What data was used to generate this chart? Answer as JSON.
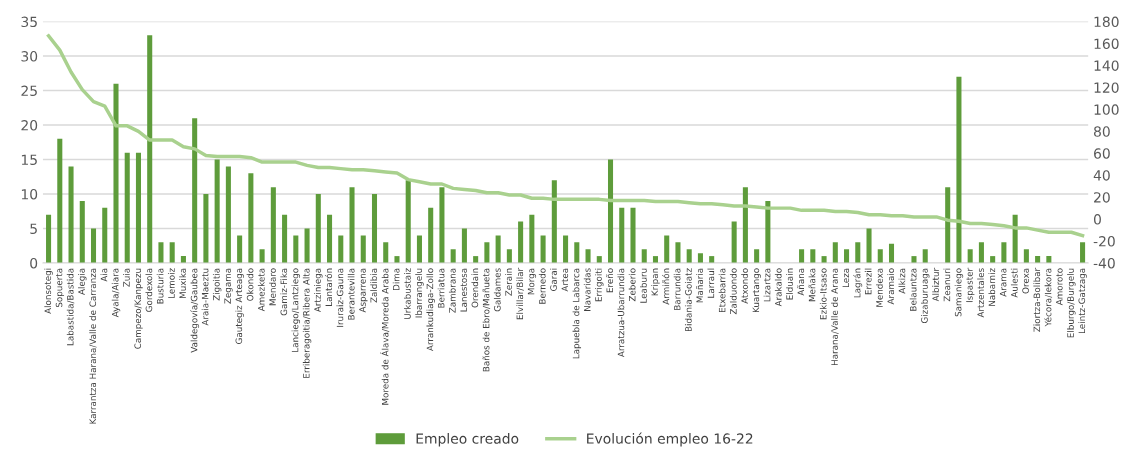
{
  "chart_data": {
    "type": "bar",
    "categories": [
      "Alonsotegi",
      "Sopuerta",
      "Labastida/Bastida",
      "Alegia",
      "Karrantza Harana/Valle de Carranza",
      "Aia",
      "Ayala/Aiara",
      "Zuia",
      "Campezo/Kanpezu",
      "Gordexola",
      "Busturia",
      "Lemoiz",
      "Muxika",
      "Valdegovía/Gaubea",
      "Araia-Maeztu",
      "Zigoitia",
      "Zegama",
      "Gautegiz Arteaga",
      "Okondo",
      "Amezketa",
      "Mendaro",
      "Gamiz-Fika",
      "Lanciego/Lantziego",
      "Erriberagoitia/Ribera Alta",
      "Artziniega",
      "Lantarón",
      "Iruraiz-Gauna",
      "Berantevilla",
      "Asparrena",
      "Zaldibia",
      "Moreda de Álava/Moreda Araba",
      "Dima",
      "Urkabustaiz",
      "Ibarrangelu",
      "Arrankudiaga-Zollo",
      "Berriatua",
      "Zambrana",
      "Lanestosa",
      "Orendain",
      "Baños de Ebro/Mañueta",
      "Galdames",
      "Zerain",
      "Elvillar/Bilar",
      "Morga",
      "Bernedo",
      "Garai",
      "Artea",
      "Lapuebla de Labarca",
      "Navaridas",
      "Errigoiti",
      "Ereño",
      "Arratzua-Ubarrundia",
      "Zeberio",
      "Leaburu",
      "Kripan",
      "Armiñón",
      "Barrundia",
      "Bidania-Goiatz",
      "Mañaria",
      "Larraul",
      "Etxebarria",
      "Zalduondo",
      "Atxondo",
      "Kuartango",
      "Lizartza",
      "Arakaldo",
      "Elduain",
      "Añana",
      "Meñaka",
      "Ezkio-Itsaso",
      "Harana/Valle de Arana",
      "Leza",
      "Lagrán",
      "Errezil",
      "Mendexa",
      "Aramaio",
      "Alkiza",
      "Belauntza",
      "Gizaburuaga",
      "Albiztur",
      "Zeanuri",
      "Samaniego",
      "Ispaster",
      "Artzentales",
      "Nabarniz",
      "Arama",
      "Aulesti",
      "Orexa",
      "Ziortza-Bolibar",
      "Yécora/Iekora",
      "Amoroto",
      "Elburgo/Burgelu",
      "Leintz-Gatzaga"
    ],
    "series": [
      {
        "name": "Empleo creado",
        "color": "#5e9c3b",
        "values": [
          7,
          18,
          14,
          9,
          5,
          8,
          26,
          16,
          16,
          33,
          3,
          3,
          1,
          21,
          10,
          15,
          14,
          4,
          13,
          2,
          11,
          7,
          4,
          5,
          10,
          7,
          4,
          11,
          4,
          10,
          3,
          1,
          12,
          4,
          8,
          11,
          2,
          5,
          1,
          3,
          4,
          2,
          6,
          7,
          4,
          12,
          4,
          3,
          2,
          1,
          15,
          8,
          8,
          2,
          1,
          4,
          3,
          2,
          1.4,
          1,
          0,
          6,
          11,
          2,
          9,
          0,
          0,
          2,
          2,
          1,
          3,
          2,
          3,
          5,
          2,
          2.8,
          0,
          1,
          2,
          0,
          11,
          27,
          2,
          3,
          1,
          3,
          7,
          2,
          1,
          1,
          0,
          0,
          3
        ]
      },
      {
        "name": "Evolución empleo 16-22",
        "type": "line",
        "axis": "y2",
        "color": "#a9d18e",
        "values": [
          167,
          154,
          134,
          118,
          107,
          103,
          85,
          85,
          80,
          72,
          72,
          72,
          66,
          64,
          58,
          57,
          57,
          57,
          56,
          52,
          52,
          52,
          52,
          49,
          47,
          47,
          46,
          45,
          45,
          44,
          43,
          42,
          36,
          34,
          32,
          32,
          28,
          27,
          26,
          24,
          24,
          22,
          22,
          19,
          19,
          18,
          18,
          18,
          18,
          18,
          17,
          17,
          17,
          17,
          16,
          16,
          16,
          15,
          14,
          14,
          13,
          12,
          12,
          11,
          10,
          10,
          10,
          8,
          8,
          8,
          7,
          7,
          6,
          4,
          4,
          3,
          3,
          2,
          2,
          2,
          -1,
          -2,
          -4,
          -4,
          -5,
          -6,
          -8,
          -8,
          -10,
          -12,
          -12,
          -12,
          -15
        ]
      }
    ],
    "ylim": [
      0,
      35
    ],
    "yticks": [
      0,
      5,
      10,
      15,
      20,
      25,
      30,
      35
    ],
    "y2lim": [
      -40,
      180
    ],
    "y2ticks": [
      -40,
      -20,
      0,
      20,
      40,
      60,
      80,
      100,
      120,
      140,
      160,
      180
    ],
    "grid": "y",
    "legend": "bottom"
  }
}
